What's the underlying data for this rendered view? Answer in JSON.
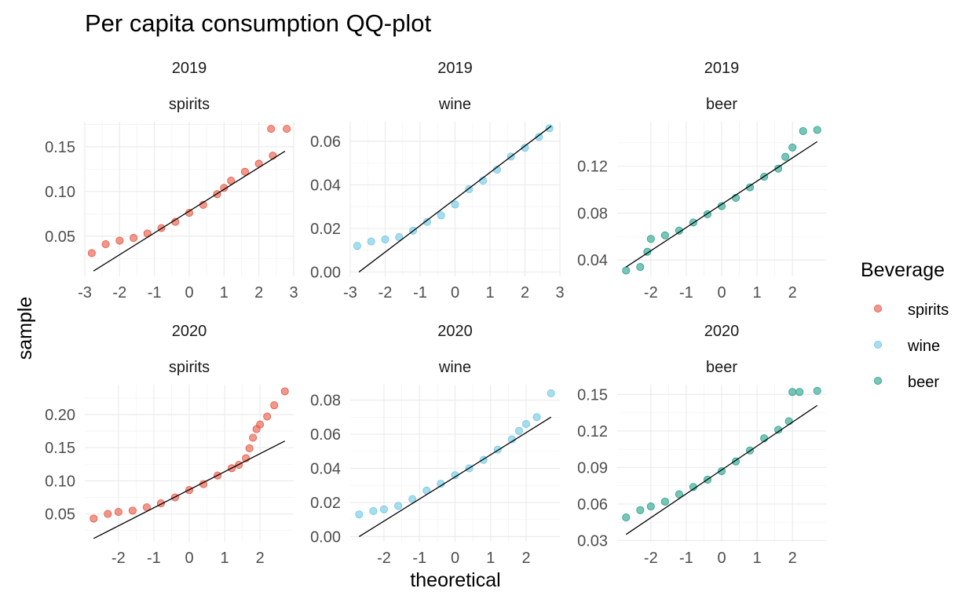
{
  "colors": {
    "spirits": "#E8533F",
    "wine": "#6CC7E2",
    "beer": "#1FA088"
  },
  "chart_data": {
    "type": "scatter",
    "subtype": "qq-plot",
    "title": "Per capita consumption QQ-plot",
    "xlabel": "theoretical",
    "ylabel": "sample",
    "grid": true,
    "legend": {
      "title": "Beverage",
      "position": "right",
      "entries": [
        "spirits",
        "wine",
        "beer"
      ]
    },
    "panels": [
      {
        "year": "2019",
        "beverage": "spirits",
        "xlim": [
          -3,
          3
        ],
        "ylim": [
          0.005,
          0.178
        ],
        "x_ticks": [
          -3,
          -2,
          -1,
          0,
          1,
          2,
          3
        ],
        "x_tick_labels": [
          "-3",
          "-2",
          "-1",
          "0",
          "1",
          "2",
          "3"
        ],
        "y_ticks": [
          0.05,
          0.1,
          0.15
        ],
        "y_tick_labels": [
          "0.05",
          "0.10",
          "0.15"
        ],
        "quantiles": [
          [
            -2.8,
            0.031
          ],
          [
            -2.4,
            0.041
          ],
          [
            -2.0,
            0.045
          ],
          [
            -1.6,
            0.048
          ],
          [
            -1.2,
            0.053
          ],
          [
            -0.8,
            0.059
          ],
          [
            -0.4,
            0.066
          ],
          [
            0,
            0.076
          ],
          [
            0.4,
            0.085
          ],
          [
            0.8,
            0.097
          ],
          [
            1.0,
            0.104
          ],
          [
            1.2,
            0.112
          ],
          [
            1.6,
            0.122
          ],
          [
            2.0,
            0.131
          ],
          [
            2.4,
            0.14
          ],
          [
            2.35,
            0.17
          ],
          [
            2.8,
            0.17
          ]
        ],
        "ref_line": [
          [
            -2.75,
            0.011
          ],
          [
            2.75,
            0.145
          ]
        ]
      },
      {
        "year": "2019",
        "beverage": "wine",
        "xlim": [
          -3,
          3
        ],
        "ylim": [
          -0.002,
          0.069
        ],
        "x_ticks": [
          -3,
          -2,
          -1,
          0,
          1,
          2,
          3
        ],
        "x_tick_labels": [
          "-3",
          "-2",
          "-1",
          "0",
          "1",
          "2",
          "3"
        ],
        "y_ticks": [
          0.0,
          0.02,
          0.04,
          0.06
        ],
        "y_tick_labels": [
          "0.00",
          "0.02",
          "0.04",
          "0.06"
        ],
        "quantiles": [
          [
            -2.8,
            0.012
          ],
          [
            -2.4,
            0.014
          ],
          [
            -2.0,
            0.015
          ],
          [
            -1.6,
            0.016
          ],
          [
            -1.2,
            0.019
          ],
          [
            -0.8,
            0.023
          ],
          [
            -0.4,
            0.026
          ],
          [
            0,
            0.031
          ],
          [
            0.4,
            0.038
          ],
          [
            0.8,
            0.042
          ],
          [
            1.2,
            0.047
          ],
          [
            1.6,
            0.053
          ],
          [
            2.0,
            0.057
          ],
          [
            2.4,
            0.062
          ],
          [
            2.7,
            0.066
          ]
        ],
        "ref_line": [
          [
            -2.75,
            0.0
          ],
          [
            2.75,
            0.067
          ]
        ]
      },
      {
        "year": "2019",
        "beverage": "beer",
        "xlim": [
          -2.95,
          2.95
        ],
        "ylim": [
          0.026,
          0.158
        ],
        "x_ticks": [
          -2,
          -1,
          0,
          1,
          2
        ],
        "x_tick_labels": [
          "-2",
          "-1",
          "0",
          "1",
          "2"
        ],
        "y_ticks": [
          0.04,
          0.08,
          0.12
        ],
        "y_tick_labels": [
          "0.04",
          "0.08",
          "0.12"
        ],
        "quantiles": [
          [
            -2.7,
            0.031
          ],
          [
            -2.3,
            0.034
          ],
          [
            -2.1,
            0.047
          ],
          [
            -2.0,
            0.058
          ],
          [
            -1.6,
            0.061
          ],
          [
            -1.2,
            0.065
          ],
          [
            -0.8,
            0.072
          ],
          [
            -0.4,
            0.079
          ],
          [
            0,
            0.086
          ],
          [
            0.4,
            0.093
          ],
          [
            0.8,
            0.102
          ],
          [
            1.2,
            0.111
          ],
          [
            1.6,
            0.118
          ],
          [
            1.8,
            0.128
          ],
          [
            2.0,
            0.136
          ],
          [
            2.3,
            0.15
          ],
          [
            2.7,
            0.151
          ]
        ],
        "ref_line": [
          [
            -2.7,
            0.034
          ],
          [
            2.7,
            0.141
          ]
        ]
      },
      {
        "year": "2020",
        "beverage": "spirits",
        "xlim": [
          -2.95,
          2.95
        ],
        "ylim": [
          0.008,
          0.245
        ],
        "x_ticks": [
          -2,
          -1,
          0,
          1,
          2
        ],
        "x_tick_labels": [
          "-2",
          "-1",
          "0",
          "1",
          "2"
        ],
        "y_ticks": [
          0.05,
          0.1,
          0.15,
          0.2
        ],
        "y_tick_labels": [
          "0.05",
          "0.10",
          "0.15",
          "0.20"
        ],
        "quantiles": [
          [
            -2.7,
            0.043
          ],
          [
            -2.3,
            0.05
          ],
          [
            -2.0,
            0.053
          ],
          [
            -1.6,
            0.055
          ],
          [
            -1.2,
            0.06
          ],
          [
            -0.8,
            0.066
          ],
          [
            -0.4,
            0.075
          ],
          [
            0,
            0.086
          ],
          [
            0.4,
            0.095
          ],
          [
            0.8,
            0.108
          ],
          [
            1.2,
            0.119
          ],
          [
            1.4,
            0.124
          ],
          [
            1.6,
            0.134
          ],
          [
            1.7,
            0.149
          ],
          [
            1.8,
            0.165
          ],
          [
            1.9,
            0.178
          ],
          [
            2.0,
            0.185
          ],
          [
            2.2,
            0.197
          ],
          [
            2.4,
            0.214
          ],
          [
            2.7,
            0.235
          ]
        ],
        "ref_line": [
          [
            -2.7,
            0.013
          ],
          [
            2.7,
            0.16
          ]
        ]
      },
      {
        "year": "2020",
        "beverage": "wine",
        "xlim": [
          -2.95,
          2.95
        ],
        "ylim": [
          -0.003,
          0.089
        ],
        "x_ticks": [
          -2,
          -1,
          0,
          1,
          2
        ],
        "x_tick_labels": [
          "-2",
          "-1",
          "0",
          "1",
          "2"
        ],
        "y_ticks": [
          0.0,
          0.02,
          0.04,
          0.06,
          0.08
        ],
        "y_tick_labels": [
          "0.00",
          "0.02",
          "0.04",
          "0.06",
          "0.08"
        ],
        "quantiles": [
          [
            -2.7,
            0.013
          ],
          [
            -2.3,
            0.015
          ],
          [
            -2.0,
            0.016
          ],
          [
            -1.6,
            0.018
          ],
          [
            -1.2,
            0.022
          ],
          [
            -0.8,
            0.027
          ],
          [
            -0.4,
            0.031
          ],
          [
            0,
            0.036
          ],
          [
            0.4,
            0.04
          ],
          [
            0.8,
            0.045
          ],
          [
            1.2,
            0.051
          ],
          [
            1.6,
            0.057
          ],
          [
            1.8,
            0.062
          ],
          [
            2.0,
            0.066
          ],
          [
            2.3,
            0.07
          ],
          [
            2.7,
            0.084
          ]
        ],
        "ref_line": [
          [
            -2.7,
            0.0
          ],
          [
            2.7,
            0.07
          ]
        ]
      },
      {
        "year": "2020",
        "beverage": "beer",
        "xlim": [
          -2.95,
          2.95
        ],
        "ylim": [
          0.029,
          0.158
        ],
        "x_ticks": [
          -2,
          -1,
          0,
          1,
          2
        ],
        "x_tick_labels": [
          "-2",
          "-1",
          "0",
          "1",
          "2"
        ],
        "y_ticks": [
          0.03,
          0.06,
          0.09,
          0.12,
          0.15
        ],
        "y_tick_labels": [
          "0.03",
          "0.06",
          "0.09",
          "0.12",
          "0.15"
        ],
        "quantiles": [
          [
            -2.7,
            0.049
          ],
          [
            -2.3,
            0.055
          ],
          [
            -2.0,
            0.058
          ],
          [
            -1.6,
            0.062
          ],
          [
            -1.2,
            0.068
          ],
          [
            -0.8,
            0.074
          ],
          [
            -0.4,
            0.08
          ],
          [
            0,
            0.087
          ],
          [
            0.4,
            0.095
          ],
          [
            0.8,
            0.104
          ],
          [
            1.2,
            0.114
          ],
          [
            1.6,
            0.121
          ],
          [
            1.9,
            0.128
          ],
          [
            2.0,
            0.152
          ],
          [
            2.2,
            0.152
          ],
          [
            2.7,
            0.153
          ]
        ],
        "ref_line": [
          [
            -2.7,
            0.035
          ],
          [
            2.7,
            0.141
          ]
        ]
      }
    ]
  }
}
